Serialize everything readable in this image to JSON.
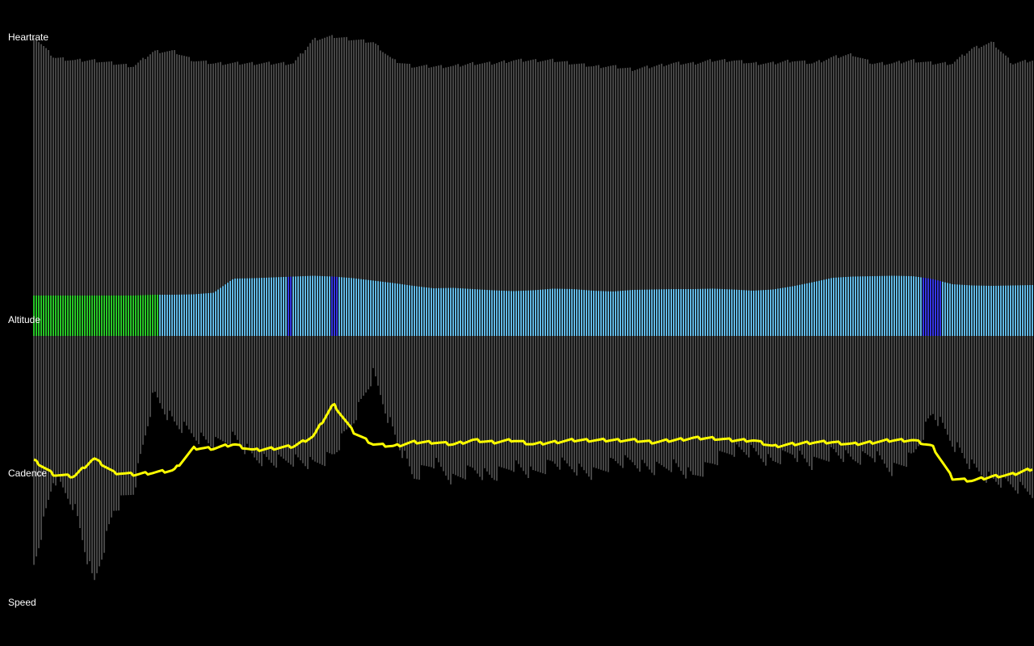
{
  "labels": {
    "heartrate": "Heartrate",
    "altitude": "Altitude",
    "cadence": "Cadence",
    "speed": "Speed"
  },
  "colors": {
    "background": "#000000",
    "bars": "#8a8a8a",
    "label": "#ffffff",
    "cadence_line": "#ffff00",
    "altitude_low": "#22dd22",
    "altitude_mid": "#66ccff",
    "altitude_high": "#3333ff"
  },
  "chart_data": [
    {
      "type": "bar",
      "name": "heartrate-panel",
      "title": "Heartrate",
      "x": [
        0,
        2,
        4,
        6,
        8,
        10,
        12,
        14,
        16,
        18,
        20,
        22,
        24,
        26,
        28,
        30,
        32,
        34,
        36,
        38,
        40,
        42,
        44,
        46,
        48,
        50,
        52,
        54,
        56,
        58,
        60,
        62,
        64,
        66,
        68,
        70,
        72,
        74,
        76,
        78,
        80,
        82,
        84,
        86,
        88,
        90,
        92,
        94,
        96,
        98,
        100
      ],
      "values": [
        100,
        93,
        92,
        92,
        91,
        90,
        95,
        95,
        92,
        91,
        91,
        91,
        91,
        91,
        99,
        100,
        99,
        98,
        92,
        90,
        90,
        90,
        91,
        91,
        92,
        92,
        92,
        91,
        90,
        90,
        89,
        90,
        91,
        91,
        92,
        92,
        91,
        91,
        92,
        91,
        93,
        94,
        91,
        91,
        92,
        91,
        91,
        96,
        98,
        91,
        92
      ],
      "ylim": [
        0,
        100
      ]
    },
    {
      "type": "area",
      "name": "altitude-panel",
      "title": "Altitude",
      "x": [
        0,
        2,
        4,
        6,
        8,
        10,
        12,
        14,
        16,
        18,
        20,
        22,
        24,
        26,
        28,
        30,
        32,
        34,
        36,
        38,
        40,
        42,
        44,
        46,
        48,
        50,
        52,
        54,
        56,
        58,
        60,
        62,
        64,
        66,
        68,
        70,
        72,
        74,
        76,
        78,
        80,
        82,
        84,
        86,
        88,
        90,
        92,
        94,
        96,
        98,
        100
      ],
      "values": [
        100,
        100,
        100,
        100,
        100,
        100,
        102,
        102,
        103,
        107,
        142,
        143,
        145,
        147,
        149,
        147,
        143,
        137,
        131,
        124,
        118,
        119,
        116,
        113,
        111,
        113,
        117,
        116,
        112,
        110,
        114,
        115,
        116,
        116,
        117,
        115,
        112,
        115,
        123,
        133,
        144,
        147,
        148,
        149,
        148,
        141,
        128,
        125,
        124,
        125,
        126
      ],
      "ylim": [
        0,
        150
      ]
    },
    {
      "type": "bar",
      "name": "speed-panel",
      "title": "Speed",
      "x": [
        0,
        2,
        4,
        6,
        8,
        10,
        12,
        14,
        16,
        18,
        20,
        22,
        24,
        26,
        28,
        30,
        32,
        34,
        36,
        38,
        40,
        42,
        44,
        46,
        48,
        50,
        52,
        54,
        56,
        58,
        60,
        62,
        64,
        66,
        68,
        70,
        72,
        74,
        76,
        78,
        80,
        82,
        84,
        86,
        88,
        90,
        92,
        94,
        96,
        98,
        100
      ],
      "values": [
        92,
        57,
        68,
        100,
        70,
        62,
        24,
        35,
        40,
        44,
        41,
        49,
        51,
        50,
        52,
        48,
        34,
        16,
        39,
        57,
        51,
        58,
        54,
        57,
        52,
        56,
        51,
        53,
        56,
        51,
        51,
        54,
        52,
        57,
        51,
        46,
        47,
        51,
        47,
        52,
        47,
        50,
        48,
        54,
        49,
        31,
        43,
        53,
        58,
        60,
        63
      ],
      "ylim": [
        0,
        100
      ]
    },
    {
      "type": "line",
      "name": "cadence-panel",
      "title": "Cadence",
      "x": [
        0,
        2,
        4,
        6,
        8,
        10,
        12,
        14,
        16,
        18,
        20,
        22,
        24,
        26,
        28,
        30,
        32,
        34,
        36,
        38,
        40,
        42,
        44,
        46,
        48,
        50,
        52,
        54,
        56,
        58,
        60,
        62,
        64,
        66,
        68,
        70,
        72,
        74,
        76,
        78,
        80,
        82,
        84,
        86,
        88,
        90,
        92,
        94,
        96,
        98,
        100
      ],
      "values": [
        12,
        5,
        4,
        13,
        6,
        5,
        6,
        7,
        18,
        18,
        20,
        17,
        18,
        19,
        24,
        40,
        26,
        20,
        19,
        21,
        21,
        20,
        22,
        21,
        22,
        20,
        21,
        22,
        22,
        22,
        22,
        21,
        22,
        23,
        23,
        22,
        22,
        19,
        20,
        21,
        21,
        20,
        21,
        22,
        22,
        19,
        3,
        2,
        4,
        5,
        8
      ],
      "ylim": [
        0,
        100
      ]
    }
  ]
}
